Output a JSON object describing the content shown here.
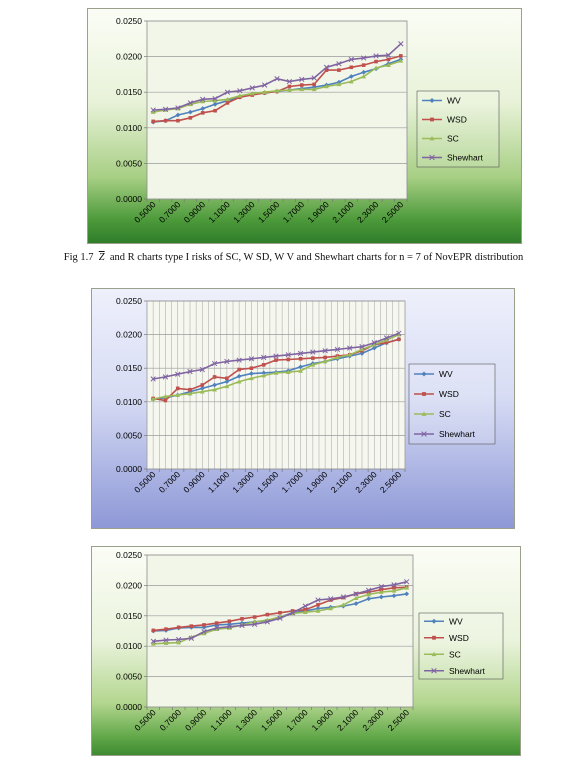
{
  "caption": {
    "prefix": "Fig 1.7",
    "symbol": "Z",
    "text": "and R charts type I risks of SC, W SD, W V and Shewhart charts for n = 7 of NovEPR distribution"
  },
  "chart_data": [
    {
      "type": "line",
      "categories": [
        "0.5000",
        "0.6000",
        "0.7000",
        "0.8000",
        "0.9000",
        "1.0000",
        "1.1000",
        "1.2000",
        "1.3000",
        "1.4000",
        "1.5000",
        "1.6000",
        "1.7000",
        "1.8000",
        "1.9000",
        "2.0000",
        "2.1000",
        "2.2000",
        "2.3000",
        "2.4000",
        "2.5000"
      ],
      "tick_labels": [
        "0.5000",
        "0.7000",
        "0.9000",
        "1.1000",
        "1.3000",
        "1.5000",
        "1.7000",
        "1.9000",
        "2.1000",
        "2.3000",
        "2.5000"
      ],
      "y_tick_labels": [
        "0.0000",
        "0.0050",
        "0.0100",
        "0.0150",
        "0.0200",
        "0.0250"
      ],
      "ylim": [
        0,
        0.025
      ],
      "grid": "horizontal",
      "legend": "right",
      "series": [
        {
          "name": "WV",
          "color": "#4f81bd",
          "values": [
            0.0108,
            0.011,
            0.0118,
            0.0122,
            0.0127,
            0.0133,
            0.0138,
            0.0143,
            0.0147,
            0.0149,
            0.0151,
            0.0153,
            0.0155,
            0.0157,
            0.016,
            0.0164,
            0.0172,
            0.0178,
            0.0183,
            0.019,
            0.0196
          ]
        },
        {
          "name": "WSD",
          "color": "#c0504d",
          "values": [
            0.0109,
            0.011,
            0.011,
            0.0114,
            0.0121,
            0.0124,
            0.0135,
            0.0143,
            0.0146,
            0.0149,
            0.0151,
            0.0158,
            0.016,
            0.0161,
            0.0181,
            0.0181,
            0.0185,
            0.0188,
            0.0193,
            0.0196,
            0.0201
          ]
        },
        {
          "name": "SC",
          "color": "#9bbb59",
          "values": [
            0.0122,
            0.0125,
            0.0127,
            0.0133,
            0.0137,
            0.0138,
            0.014,
            0.0145,
            0.0148,
            0.015,
            0.0152,
            0.0153,
            0.0154,
            0.0154,
            0.0158,
            0.0161,
            0.0165,
            0.0172,
            0.0184,
            0.0188,
            0.0194
          ]
        },
        {
          "name": "Shewhart",
          "color": "#8064a2",
          "values": [
            0.0125,
            0.0126,
            0.0128,
            0.0135,
            0.014,
            0.0141,
            0.015,
            0.0152,
            0.0156,
            0.016,
            0.0169,
            0.0165,
            0.0168,
            0.017,
            0.0185,
            0.019,
            0.0196,
            0.0198,
            0.0201,
            0.0202,
            0.0218
          ]
        }
      ]
    },
    {
      "type": "line",
      "categories": [
        "0.5000",
        "0.6000",
        "0.7000",
        "0.8000",
        "0.9000",
        "1.0000",
        "1.1000",
        "1.2000",
        "1.3000",
        "1.4000",
        "1.5000",
        "1.6000",
        "1.7000",
        "1.8000",
        "1.9000",
        "2.0000",
        "2.1000",
        "2.2000",
        "2.3000",
        "2.4000",
        "2.5000"
      ],
      "tick_labels": [
        "0.5000",
        "0.7000",
        "0.9000",
        "1.1000",
        "1.3000",
        "1.5000",
        "1.7000",
        "1.9000",
        "2.1000",
        "2.3000",
        "2.5000"
      ],
      "y_tick_labels": [
        "0.0000",
        "0.0050",
        "0.0100",
        "0.0150",
        "0.0200",
        "0.0250"
      ],
      "ylim": [
        0,
        0.025
      ],
      "grid": "both",
      "legend": "right",
      "series": [
        {
          "name": "WV",
          "color": "#4f81bd",
          "values": [
            0.0104,
            0.0106,
            0.011,
            0.0115,
            0.012,
            0.0125,
            0.013,
            0.0138,
            0.0142,
            0.0143,
            0.0144,
            0.0146,
            0.0152,
            0.0157,
            0.016,
            0.0164,
            0.0168,
            0.0172,
            0.018,
            0.0188,
            0.0193
          ]
        },
        {
          "name": "WSD",
          "color": "#c0504d",
          "values": [
            0.0105,
            0.0102,
            0.012,
            0.0118,
            0.0125,
            0.0137,
            0.0135,
            0.0148,
            0.015,
            0.0155,
            0.0162,
            0.0163,
            0.0164,
            0.0165,
            0.0166,
            0.0168,
            0.017,
            0.0176,
            0.0185,
            0.0188,
            0.0193
          ]
        },
        {
          "name": "SC",
          "color": "#9bbb59",
          "values": [
            0.0104,
            0.0108,
            0.011,
            0.0112,
            0.0115,
            0.0118,
            0.0123,
            0.013,
            0.0135,
            0.0139,
            0.0143,
            0.0144,
            0.0146,
            0.0155,
            0.016,
            0.0166,
            0.017,
            0.0178,
            0.0185,
            0.0192,
            0.02
          ]
        },
        {
          "name": "Shewhart",
          "color": "#8064a2",
          "values": [
            0.0134,
            0.0137,
            0.0141,
            0.0145,
            0.0148,
            0.0157,
            0.016,
            0.0162,
            0.0164,
            0.0166,
            0.0168,
            0.017,
            0.0172,
            0.0174,
            0.0176,
            0.0178,
            0.018,
            0.0182,
            0.0188,
            0.0195,
            0.0202
          ]
        }
      ]
    },
    {
      "type": "line",
      "categories": [
        "0.5000",
        "0.6000",
        "0.7000",
        "0.8000",
        "0.9000",
        "1.0000",
        "1.1000",
        "1.2000",
        "1.3000",
        "1.4000",
        "1.5000",
        "1.6000",
        "1.7000",
        "1.8000",
        "1.9000",
        "2.0000",
        "2.1000",
        "2.2000",
        "2.3000",
        "2.4000",
        "2.5000"
      ],
      "tick_labels": [
        "0.5000",
        "0.7000",
        "0.9000",
        "1.1000",
        "1.3000",
        "1.5000",
        "1.7000",
        "1.9000",
        "2.1000",
        "2.3000",
        "2.5000"
      ],
      "y_tick_labels": [
        "0.0000",
        "0.0050",
        "0.0100",
        "0.0150",
        "0.0200",
        "0.0250"
      ],
      "ylim": [
        0,
        0.025
      ],
      "grid": "horizontal",
      "legend": "right",
      "series": [
        {
          "name": "WV",
          "color": "#4f81bd",
          "values": [
            0.0125,
            0.0126,
            0.013,
            0.0131,
            0.0131,
            0.0135,
            0.0136,
            0.0138,
            0.014,
            0.0142,
            0.0148,
            0.0155,
            0.0158,
            0.0162,
            0.0164,
            0.0166,
            0.017,
            0.0178,
            0.0181,
            0.0183,
            0.0186
          ]
        },
        {
          "name": "WSD",
          "color": "#c0504d",
          "values": [
            0.0126,
            0.0128,
            0.0131,
            0.0133,
            0.0135,
            0.0138,
            0.0141,
            0.0145,
            0.0148,
            0.0152,
            0.0155,
            0.0158,
            0.016,
            0.0168,
            0.0176,
            0.018,
            0.0186,
            0.0189,
            0.0193,
            0.0196,
            0.0197
          ]
        },
        {
          "name": "SC",
          "color": "#9bbb59",
          "values": [
            0.0104,
            0.0105,
            0.0106,
            0.0115,
            0.0121,
            0.0128,
            0.013,
            0.0135,
            0.014,
            0.0143,
            0.0148,
            0.0154,
            0.0156,
            0.0158,
            0.0162,
            0.0168,
            0.0179,
            0.0185,
            0.0189,
            0.0191,
            0.0196
          ]
        },
        {
          "name": "Shewhart",
          "color": "#8064a2",
          "values": [
            0.0108,
            0.011,
            0.0111,
            0.0113,
            0.0124,
            0.013,
            0.0132,
            0.0134,
            0.0136,
            0.014,
            0.0146,
            0.0155,
            0.0166,
            0.0176,
            0.0178,
            0.0181,
            0.0186,
            0.0192,
            0.0198,
            0.0201,
            0.0206
          ]
        }
      ]
    }
  ]
}
